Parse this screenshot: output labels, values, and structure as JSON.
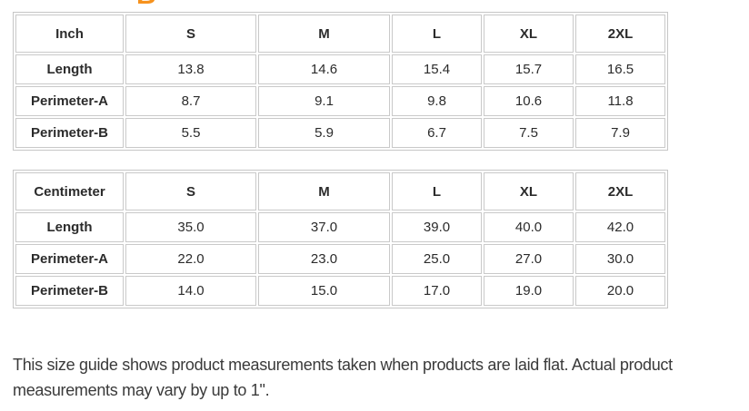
{
  "heading_fragment": {
    "glyph": "B",
    "color": "#f6921e",
    "note": "orange heading letter cut off by top edge of screenshot"
  },
  "tables": [
    {
      "unit_header": "Inch",
      "size_headers": [
        "S",
        "M",
        "L",
        "XL",
        "2XL"
      ],
      "rows": [
        {
          "label": "Length",
          "values": [
            "13.8",
            "14.6",
            "15.4",
            "15.7",
            "16.5"
          ]
        },
        {
          "label": "Perimeter-A",
          "values": [
            "8.7",
            "9.1",
            "9.8",
            "10.6",
            "11.8"
          ]
        },
        {
          "label": "Perimeter-B",
          "values": [
            "5.5",
            "5.9",
            "6.7",
            "7.5",
            "7.9"
          ]
        }
      ]
    },
    {
      "unit_header": "Centimeter",
      "size_headers": [
        "S",
        "M",
        "L",
        "XL",
        "2XL"
      ],
      "rows": [
        {
          "label": "Length",
          "values": [
            "35.0",
            "37.0",
            "39.0",
            "40.0",
            "42.0"
          ]
        },
        {
          "label": "Perimeter-A",
          "values": [
            "22.0",
            "23.0",
            "25.0",
            "27.0",
            "30.0"
          ]
        },
        {
          "label": "Perimeter-B",
          "values": [
            "14.0",
            "15.0",
            "17.0",
            "19.0",
            "20.0"
          ]
        }
      ]
    }
  ],
  "footer": {
    "note": "This size guide shows product measurements taken when products are laid flat. Actual product measurements may vary by up to 1\"."
  },
  "colors": {
    "table_border": "#c6c6c6",
    "cell_border": "#c9c9c9",
    "table_text": "#2b2b2b",
    "note_text": "#3a3a3a",
    "accent_orange": "#f6921e",
    "background": "#ffffff"
  }
}
